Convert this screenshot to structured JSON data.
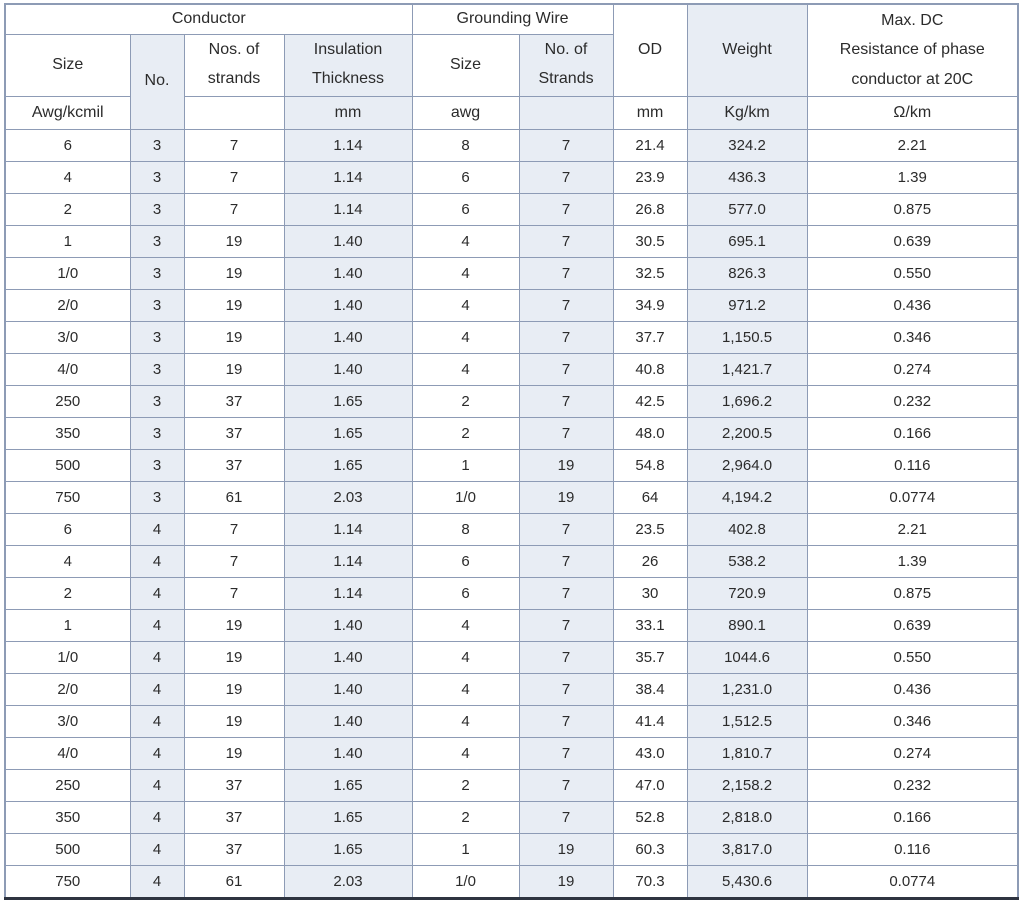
{
  "table": {
    "groups": {
      "conductor": "Conductor",
      "grounding_wire": "Grounding Wire"
    },
    "columns": {
      "size": {
        "label": "Size",
        "unit": "Awg/kcmil"
      },
      "no": {
        "label": "No.",
        "unit": ""
      },
      "strands": {
        "label": "Nos. of strands",
        "unit": ""
      },
      "insulation": {
        "label": "Insulation Thickness",
        "unit": "mm"
      },
      "g_size": {
        "label": "Size",
        "unit": "awg"
      },
      "g_strands": {
        "label": "No. of Strands",
        "unit": ""
      },
      "od": {
        "label": "OD",
        "unit": "mm"
      },
      "weight": {
        "label": "Weight",
        "unit": "Kg/km"
      },
      "max_dc": {
        "label_lines": [
          "Max. DC",
          "Resistance of phase",
          "conductor at 20C"
        ],
        "unit": "Ω/km"
      }
    },
    "rows": [
      [
        "6",
        "3",
        "7",
        "1.14",
        "8",
        "7",
        "21.4",
        "324.2",
        "2.21"
      ],
      [
        "4",
        "3",
        "7",
        "1.14",
        "6",
        "7",
        "23.9",
        "436.3",
        "1.39"
      ],
      [
        "2",
        "3",
        "7",
        "1.14",
        "6",
        "7",
        "26.8",
        "577.0",
        "0.875"
      ],
      [
        "1",
        "3",
        "19",
        "1.40",
        "4",
        "7",
        "30.5",
        "695.1",
        "0.639"
      ],
      [
        "1/0",
        "3",
        "19",
        "1.40",
        "4",
        "7",
        "32.5",
        "826.3",
        "0.550"
      ],
      [
        "2/0",
        "3",
        "19",
        "1.40",
        "4",
        "7",
        "34.9",
        "971.2",
        "0.436"
      ],
      [
        "3/0",
        "3",
        "19",
        "1.40",
        "4",
        "7",
        "37.7",
        "1,150.5",
        "0.346"
      ],
      [
        "4/0",
        "3",
        "19",
        "1.40",
        "4",
        "7",
        "40.8",
        "1,421.7",
        "0.274"
      ],
      [
        "250",
        "3",
        "37",
        "1.65",
        "2",
        "7",
        "42.5",
        "1,696.2",
        "0.232"
      ],
      [
        "350",
        "3",
        "37",
        "1.65",
        "2",
        "7",
        "48.0",
        "2,200.5",
        "0.166"
      ],
      [
        "500",
        "3",
        "37",
        "1.65",
        "1",
        "19",
        "54.8",
        "2,964.0",
        "0.116"
      ],
      [
        "750",
        "3",
        "61",
        "2.03",
        "1/0",
        "19",
        "64",
        "4,194.2",
        "0.0774"
      ],
      [
        "6",
        "4",
        "7",
        "1.14",
        "8",
        "7",
        "23.5",
        "402.8",
        "2.21"
      ],
      [
        "4",
        "4",
        "7",
        "1.14",
        "6",
        "7",
        "26",
        "538.2",
        "1.39"
      ],
      [
        "2",
        "4",
        "7",
        "1.14",
        "6",
        "7",
        "30",
        "720.9",
        "0.875"
      ],
      [
        "1",
        "4",
        "19",
        "1.40",
        "4",
        "7",
        "33.1",
        "890.1",
        "0.639"
      ],
      [
        "1/0",
        "4",
        "19",
        "1.40",
        "4",
        "7",
        "35.7",
        "1044.6",
        "0.550"
      ],
      [
        "2/0",
        "4",
        "19",
        "1.40",
        "4",
        "7",
        "38.4",
        "1,231.0",
        "0.436"
      ],
      [
        "3/0",
        "4",
        "19",
        "1.40",
        "4",
        "7",
        "41.4",
        "1,512.5",
        "0.346"
      ],
      [
        "4/0",
        "4",
        "19",
        "1.40",
        "4",
        "7",
        "43.0",
        "1,810.7",
        "0.274"
      ],
      [
        "250",
        "4",
        "37",
        "1.65",
        "2",
        "7",
        "47.0",
        "2,158.2",
        "0.232"
      ],
      [
        "350",
        "4",
        "37",
        "1.65",
        "2",
        "7",
        "52.8",
        "2,818.0",
        "0.166"
      ],
      [
        "500",
        "4",
        "37",
        "1.65",
        "1",
        "19",
        "60.3",
        "3,817.0",
        "0.116"
      ],
      [
        "750",
        "4",
        "61",
        "2.03",
        "1/0",
        "19",
        "70.3",
        "5,430.6",
        "0.0774"
      ]
    ],
    "colors": {
      "shaded_column": "#e8edf4",
      "border": "#8d9bb5",
      "bottom_border": "#2e3440",
      "text": "#2b2b2b",
      "background": "#ffffff"
    }
  }
}
